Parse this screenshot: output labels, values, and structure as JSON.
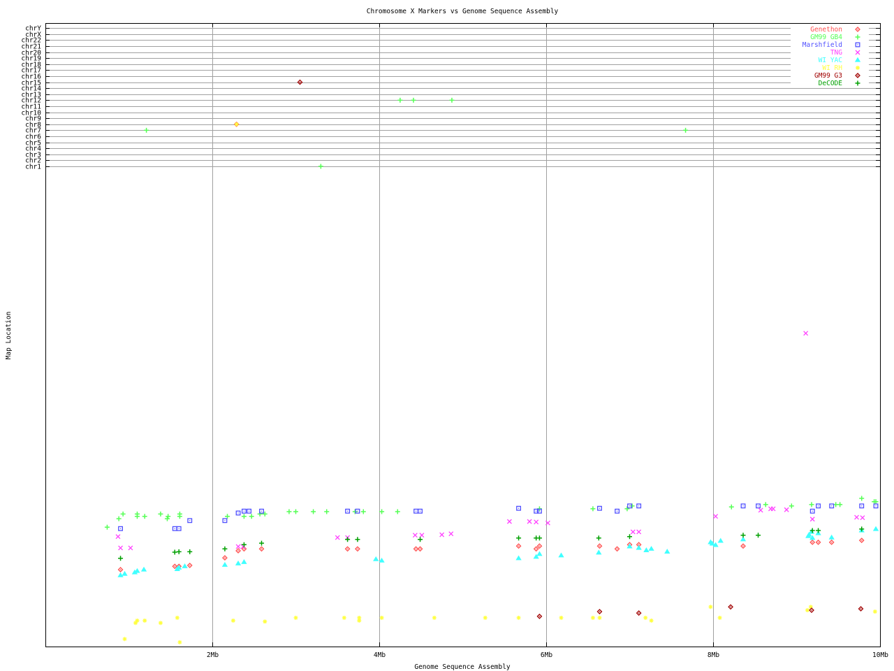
{
  "chart_data": {
    "type": "scatter",
    "title": "Chromosome X Markers vs Genome Sequence Assembly",
    "xlabel": "Genome Sequence Assembly",
    "ylabel": "Map Location",
    "xlim": [
      0,
      10
    ],
    "x_ticks": [
      {
        "value": 2,
        "label": "2Mb"
      },
      {
        "value": 4,
        "label": "4Mb"
      },
      {
        "value": 6,
        "label": "6Mb"
      },
      {
        "value": 8,
        "label": "8Mb"
      },
      {
        "value": 10,
        "label": "10Mb"
      }
    ],
    "y_categories": [
      "chr1",
      "chr2",
      "chr3",
      "chr4",
      "chr5",
      "chr6",
      "chr7",
      "chr8",
      "chr9",
      "chr10",
      "chr11",
      "chr12",
      "chr13",
      "chr14",
      "chr15",
      "chr16",
      "chr17",
      "chr18",
      "chr19",
      "chr20",
      "chr21",
      "chr22",
      "chrX",
      "chrY"
    ],
    "map_position_range": [
      0,
      100
    ],
    "grid": true,
    "legend": "top-right",
    "series": [
      {
        "name": "Genethon",
        "color": "#ff5050",
        "marker": "diamond",
        "points": [
          [
            0.9,
            16.3
          ],
          [
            1.55,
            17.0
          ],
          [
            1.6,
            17.0
          ],
          [
            1.73,
            17.2
          ],
          [
            2.15,
            18.8
          ],
          [
            2.31,
            20.3
          ],
          [
            2.38,
            20.7
          ],
          [
            2.59,
            20.7
          ],
          [
            3.62,
            20.7
          ],
          [
            3.74,
            20.7
          ],
          [
            4.44,
            20.7
          ],
          [
            4.49,
            20.7
          ],
          [
            5.67,
            21.3
          ],
          [
            5.88,
            20.7
          ],
          [
            5.92,
            21.3
          ],
          [
            6.64,
            21.3
          ],
          [
            6.85,
            20.7
          ],
          [
            7.0,
            21.6
          ],
          [
            7.11,
            21.6
          ],
          [
            8.36,
            21.3
          ],
          [
            9.19,
            22.1
          ],
          [
            9.26,
            22.1
          ],
          [
            9.42,
            22.1
          ],
          [
            9.78,
            22.5
          ]
        ],
        "chromosome_hits": [
          [
            2.29,
            "chr8"
          ]
        ]
      },
      {
        "name": "GM99 GB4",
        "color": "#55ff55",
        "marker": "plus",
        "points": [
          [
            0.93,
            28.1
          ],
          [
            0.88,
            27.1
          ],
          [
            0.74,
            25.3
          ],
          [
            1.1,
            28.1
          ],
          [
            1.1,
            27.6
          ],
          [
            1.19,
            27.6
          ],
          [
            1.38,
            28.1
          ],
          [
            1.47,
            27.6
          ],
          [
            1.46,
            27.1
          ],
          [
            1.61,
            28.1
          ],
          [
            1.61,
            27.6
          ],
          [
            2.18,
            27.6
          ],
          [
            2.38,
            27.6
          ],
          [
            2.47,
            27.6
          ],
          [
            2.57,
            28.1
          ],
          [
            2.63,
            28.1
          ],
          [
            2.92,
            28.6
          ],
          [
            3.0,
            28.6
          ],
          [
            3.21,
            28.6
          ],
          [
            3.37,
            28.6
          ],
          [
            3.71,
            28.6
          ],
          [
            3.81,
            28.6
          ],
          [
            4.03,
            28.6
          ],
          [
            4.22,
            28.6
          ],
          [
            5.92,
            29.2
          ],
          [
            6.56,
            29.2
          ],
          [
            6.97,
            29.2
          ],
          [
            7.03,
            29.8
          ],
          [
            8.22,
            29.6
          ],
          [
            8.63,
            30.1
          ],
          [
            8.94,
            29.8
          ],
          [
            9.18,
            30.1
          ],
          [
            9.47,
            30.1
          ],
          [
            9.52,
            30.1
          ],
          [
            9.78,
            31.4
          ],
          [
            9.93,
            30.7
          ],
          [
            9.95,
            30.7
          ]
        ],
        "chromosome_hits": [
          [
            1.21,
            "chr7"
          ],
          [
            4.25,
            "chr12"
          ],
          [
            4.41,
            "chr12"
          ],
          [
            4.87,
            "chr12"
          ],
          [
            3.3,
            "chr1"
          ],
          [
            7.67,
            "chr7"
          ]
        ]
      },
      {
        "name": "Marshfield",
        "color": "#5050ff",
        "marker": "dotted-square",
        "points": [
          [
            0.9,
            25.0
          ],
          [
            1.73,
            26.7
          ],
          [
            1.55,
            25.0
          ],
          [
            1.6,
            25.0
          ],
          [
            2.15,
            26.7
          ],
          [
            2.31,
            28.3
          ],
          [
            2.38,
            28.7
          ],
          [
            2.44,
            28.7
          ],
          [
            2.59,
            28.7
          ],
          [
            3.62,
            28.7
          ],
          [
            3.74,
            28.7
          ],
          [
            4.44,
            28.7
          ],
          [
            4.49,
            28.7
          ],
          [
            5.67,
            29.3
          ],
          [
            5.88,
            28.7
          ],
          [
            5.92,
            28.7
          ],
          [
            6.64,
            29.3
          ],
          [
            6.85,
            28.7
          ],
          [
            7.0,
            29.8
          ],
          [
            7.11,
            29.8
          ],
          [
            8.36,
            29.8
          ],
          [
            8.54,
            29.8
          ],
          [
            9.26,
            29.8
          ],
          [
            9.19,
            28.7
          ],
          [
            9.42,
            29.8
          ],
          [
            9.78,
            29.8
          ],
          [
            9.95,
            29.8
          ]
        ],
        "chromosome_hits": []
      },
      {
        "name": "TNG",
        "color": "#ff40ff",
        "marker": "cross",
        "points": [
          [
            0.87,
            23.3
          ],
          [
            0.9,
            20.9
          ],
          [
            1.02,
            20.9
          ],
          [
            2.31,
            21.2
          ],
          [
            2.37,
            21.2
          ],
          [
            3.5,
            23.1
          ],
          [
            3.62,
            23.1
          ],
          [
            4.43,
            23.6
          ],
          [
            4.51,
            23.6
          ],
          [
            4.75,
            23.7
          ],
          [
            4.86,
            23.9
          ],
          [
            5.56,
            26.5
          ],
          [
            5.8,
            26.5
          ],
          [
            5.88,
            26.4
          ],
          [
            6.02,
            26.2
          ],
          [
            7.04,
            24.3
          ],
          [
            7.11,
            24.3
          ],
          [
            8.03,
            27.6
          ],
          [
            8.57,
            28.9
          ],
          [
            8.69,
            29.2
          ],
          [
            8.72,
            29.2
          ],
          [
            8.88,
            29.0
          ],
          [
            9.19,
            27.0
          ],
          [
            9.72,
            27.4
          ],
          [
            9.79,
            27.3
          ],
          [
            9.11,
            66.4
          ]
        ],
        "chromosome_hits": []
      },
      {
        "name": "WI YAC",
        "color": "#40ffff",
        "marker": "triangle",
        "points": [
          [
            0.9,
            15.1
          ],
          [
            0.95,
            15.4
          ],
          [
            1.07,
            15.7
          ],
          [
            1.1,
            16.0
          ],
          [
            1.18,
            16.3
          ],
          [
            1.58,
            16.4
          ],
          [
            1.6,
            16.7
          ],
          [
            1.67,
            17.0
          ],
          [
            2.15,
            17.3
          ],
          [
            2.31,
            17.6
          ],
          [
            2.38,
            17.9
          ],
          [
            3.96,
            18.5
          ],
          [
            4.03,
            18.2
          ],
          [
            5.67,
            18.7
          ],
          [
            5.88,
            19.0
          ],
          [
            5.92,
            19.6
          ],
          [
            6.18,
            19.3
          ],
          [
            6.63,
            19.9
          ],
          [
            7.0,
            21.2
          ],
          [
            7.11,
            20.9
          ],
          [
            7.2,
            20.4
          ],
          [
            7.26,
            20.7
          ],
          [
            7.45,
            20.1
          ],
          [
            7.97,
            22.1
          ],
          [
            7.99,
            21.8
          ],
          [
            8.03,
            21.5
          ],
          [
            8.09,
            22.4
          ],
          [
            8.36,
            22.7
          ],
          [
            9.14,
            23.4
          ],
          [
            9.15,
            23.7
          ],
          [
            9.18,
            24.3
          ],
          [
            9.19,
            23.0
          ],
          [
            9.26,
            24.0
          ],
          [
            9.42,
            23.1
          ],
          [
            9.78,
            24.6
          ],
          [
            9.95,
            24.9
          ]
        ],
        "chromosome_hits": []
      },
      {
        "name": "WI RH",
        "color": "#ffff40",
        "marker": "star",
        "points": [
          [
            1.08,
            5.0
          ],
          [
            1.1,
            5.5
          ],
          [
            1.19,
            5.5
          ],
          [
            1.38,
            5.0
          ],
          [
            1.58,
            6.1
          ],
          [
            0.95,
            1.6
          ],
          [
            1.61,
            0.9
          ],
          [
            2.25,
            5.5
          ],
          [
            2.63,
            5.3
          ],
          [
            3.0,
            6.1
          ],
          [
            3.58,
            6.1
          ],
          [
            3.76,
            6.1
          ],
          [
            3.76,
            5.5
          ],
          [
            4.03,
            6.1
          ],
          [
            4.66,
            6.1
          ],
          [
            5.27,
            6.1
          ],
          [
            5.67,
            6.1
          ],
          [
            6.18,
            6.1
          ],
          [
            6.56,
            6.1
          ],
          [
            6.64,
            6.1
          ],
          [
            7.19,
            6.1
          ],
          [
            7.26,
            5.5
          ],
          [
            7.97,
            8.4
          ],
          [
            8.08,
            6.1
          ],
          [
            9.17,
            8.4
          ],
          [
            9.13,
            7.7
          ],
          [
            9.94,
            7.4
          ]
        ],
        "chromosome_hits": [
          [
            2.29,
            "chr8"
          ]
        ]
      },
      {
        "name": "GM99 G3",
        "color": "#a00000",
        "marker": "diamond",
        "points": [
          [
            5.92,
            6.4
          ],
          [
            6.64,
            7.4
          ],
          [
            7.11,
            7.1
          ],
          [
            8.21,
            8.4
          ],
          [
            9.18,
            7.7
          ],
          [
            9.77,
            8.0
          ]
        ],
        "chromosome_hits": [
          [
            3.05,
            "chr15"
          ]
        ]
      },
      {
        "name": "DeCODE",
        "color": "#00a000",
        "marker": "plus",
        "points": [
          [
            0.9,
            18.7
          ],
          [
            1.55,
            20.0
          ],
          [
            1.6,
            20.1
          ],
          [
            1.73,
            20.1
          ],
          [
            2.15,
            20.7
          ],
          [
            2.38,
            21.6
          ],
          [
            2.59,
            21.9
          ],
          [
            3.62,
            22.7
          ],
          [
            3.74,
            22.7
          ],
          [
            4.49,
            22.7
          ],
          [
            5.67,
            23.0
          ],
          [
            5.88,
            23.0
          ],
          [
            5.92,
            23.0
          ],
          [
            6.63,
            23.0
          ],
          [
            7.0,
            23.3
          ],
          [
            8.36,
            23.6
          ],
          [
            8.54,
            23.6
          ],
          [
            9.19,
            24.6
          ],
          [
            9.26,
            24.6
          ],
          [
            9.78,
            24.9
          ]
        ],
        "chromosome_hits": []
      }
    ]
  }
}
